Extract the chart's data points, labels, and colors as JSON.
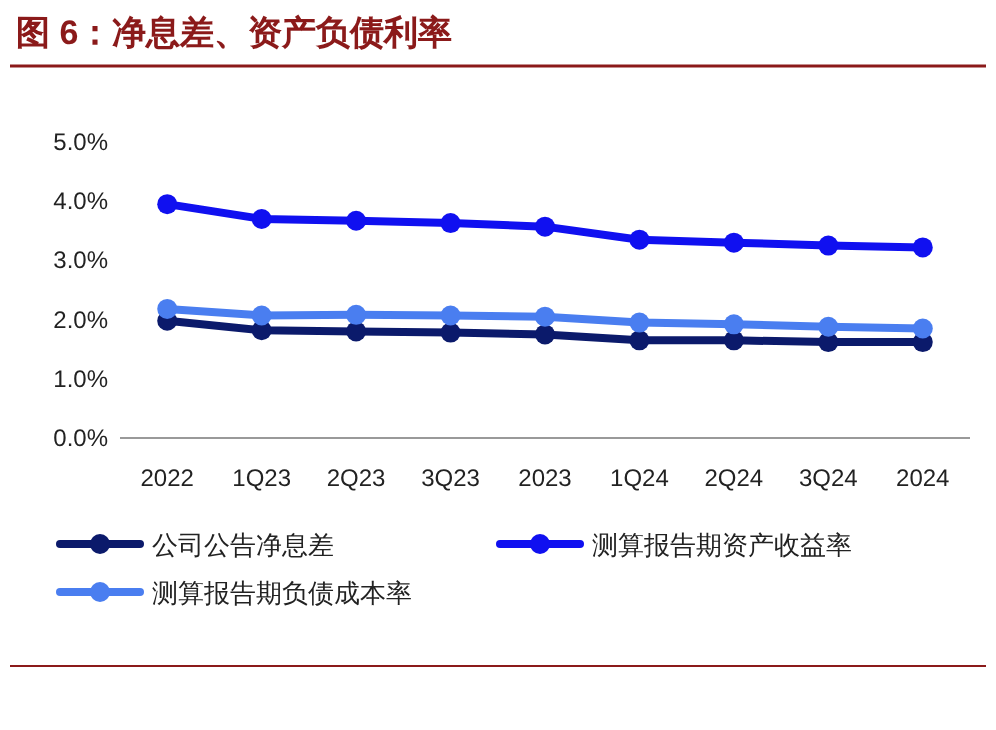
{
  "chart_data": {
    "type": "line",
    "title": "图 6：净息差、资产负债利率",
    "categories": [
      "2022",
      "1Q23",
      "2Q23",
      "3Q23",
      "2023",
      "1Q24",
      "2Q24",
      "3Q24",
      "2024"
    ],
    "series": [
      {
        "name": "公司公告净息差",
        "color": "#0b1a6b",
        "values": [
          1.98,
          1.82,
          1.8,
          1.78,
          1.75,
          1.65,
          1.65,
          1.62,
          1.62
        ]
      },
      {
        "name": "测算报告期资产收益率",
        "color": "#1010f0",
        "values": [
          3.95,
          3.7,
          3.67,
          3.63,
          3.57,
          3.35,
          3.3,
          3.25,
          3.22
        ]
      },
      {
        "name": "测算报告期负债成本率",
        "color": "#4a7ef0",
        "values": [
          2.18,
          2.07,
          2.08,
          2.07,
          2.05,
          1.95,
          1.92,
          1.88,
          1.85
        ]
      }
    ],
    "ylim": [
      0,
      5
    ],
    "yticks": [
      {
        "value": 0,
        "label": "0.0%"
      },
      {
        "value": 1,
        "label": "1.0%"
      },
      {
        "value": 2,
        "label": "2.0%"
      },
      {
        "value": 3,
        "label": "3.0%"
      },
      {
        "value": 4,
        "label": "4.0%"
      },
      {
        "value": 5,
        "label": "5.0%"
      }
    ],
    "marker": "circle",
    "line_style": "solid",
    "legend": "bottom",
    "grid": false
  }
}
